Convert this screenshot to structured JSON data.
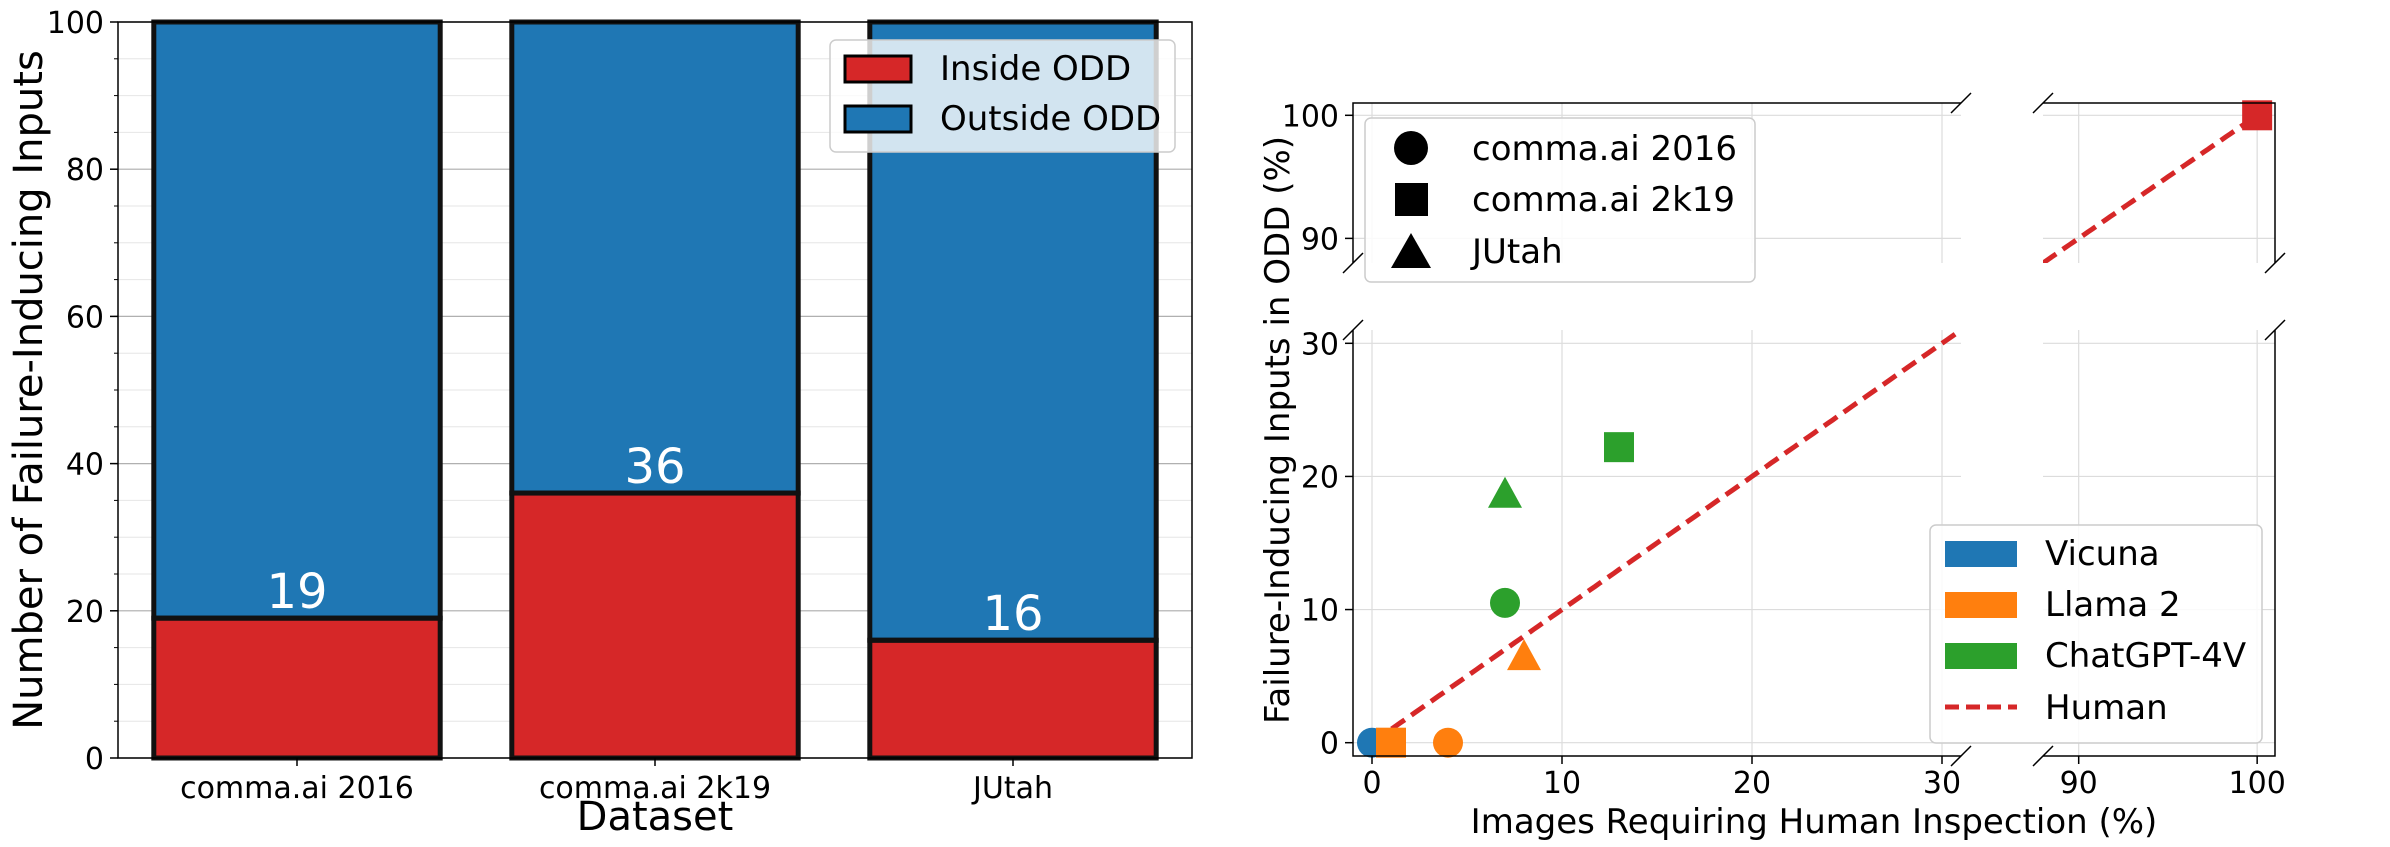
{
  "chart_data": [
    {
      "type": "bar",
      "stacked": true,
      "xlabel": "Dataset",
      "ylabel": "Number of Failure-Inducing Inputs",
      "categories": [
        "comma.ai 2016",
        "comma.ai 2k19",
        "JUtah"
      ],
      "series": [
        {
          "name": "Inside ODD",
          "values": [
            19,
            36,
            16
          ],
          "color": "#d62728"
        },
        {
          "name": "Outside ODD",
          "values": [
            81,
            64,
            84
          ],
          "color": "#1f77b4"
        }
      ],
      "data_labels": [
        "19",
        "36",
        "16"
      ],
      "ylim": [
        0,
        100
      ],
      "yticks": [
        0,
        20,
        40,
        60,
        80,
        100
      ],
      "ytick_labels": [
        "0",
        "20",
        "40",
        "60",
        "80",
        "100"
      ],
      "grid": true,
      "legend_placement": "top-right"
    },
    {
      "type": "scatter",
      "broken_axes": true,
      "xlabel": "Images Requiring Human Inspection (%)",
      "ylabel": "Failure-Inducing Inputs in ODD (%)",
      "x_segments": [
        [
          -1,
          31
        ],
        [
          88,
          101
        ]
      ],
      "y_segments": [
        [
          -1,
          31
        ],
        [
          88,
          101
        ]
      ],
      "xticks": [
        0,
        10,
        20,
        30,
        90,
        100
      ],
      "xtick_labels": [
        "0",
        "10",
        "20",
        "30",
        "90",
        "100"
      ],
      "yticks": [
        0,
        10,
        20,
        30,
        90,
        100
      ],
      "ytick_labels": [
        "0",
        "10",
        "20",
        "30",
        "90",
        "100"
      ],
      "grid": true,
      "markers_legend": {
        "placement": "upper-left",
        "entries": [
          {
            "label": "comma.ai 2016",
            "marker": "circle"
          },
          {
            "label": "comma.ai 2k19",
            "marker": "square"
          },
          {
            "label": "JUtah",
            "marker": "triangle"
          }
        ]
      },
      "series_legend": {
        "placement": "lower-right",
        "entries": [
          {
            "label": "Vicuna",
            "color": "#1f77b4",
            "style": "patch"
          },
          {
            "label": "Llama 2",
            "color": "#ff7f0e",
            "style": "patch"
          },
          {
            "label": "ChatGPT-4V",
            "color": "#2ca02c",
            "style": "patch"
          },
          {
            "label": "Human",
            "color": "#d62728",
            "style": "dashed-line"
          }
        ]
      },
      "points": [
        {
          "model": "Vicuna",
          "dataset": "comma.ai 2016",
          "marker": "circle",
          "color": "#1f77b4",
          "x": 0,
          "y": 0
        },
        {
          "model": "Llama 2",
          "dataset": "comma.ai 2016",
          "marker": "circle",
          "color": "#ff7f0e",
          "x": 4,
          "y": 0
        },
        {
          "model": "Llama 2",
          "dataset": "comma.ai 2k19",
          "marker": "square",
          "color": "#ff7f0e",
          "x": 1,
          "y": 0
        },
        {
          "model": "Llama 2",
          "dataset": "JUtah",
          "marker": "triangle",
          "color": "#ff7f0e",
          "x": 8,
          "y": 6.5
        },
        {
          "model": "ChatGPT-4V",
          "dataset": "comma.ai 2016",
          "marker": "circle",
          "color": "#2ca02c",
          "x": 7,
          "y": 10.5
        },
        {
          "model": "ChatGPT-4V",
          "dataset": "comma.ai 2k19",
          "marker": "square",
          "color": "#2ca02c",
          "x": 13,
          "y": 22.2
        },
        {
          "model": "ChatGPT-4V",
          "dataset": "JUtah",
          "marker": "triangle",
          "color": "#2ca02c",
          "x": 7,
          "y": 18.7
        },
        {
          "model": "Human",
          "dataset": "comma.ai 2k19",
          "marker": "square",
          "color": "#d62728",
          "x": 100,
          "y": 100
        }
      ],
      "human_line": {
        "from": [
          0,
          0
        ],
        "to": [
          100,
          100
        ],
        "color": "#d62728"
      }
    }
  ]
}
